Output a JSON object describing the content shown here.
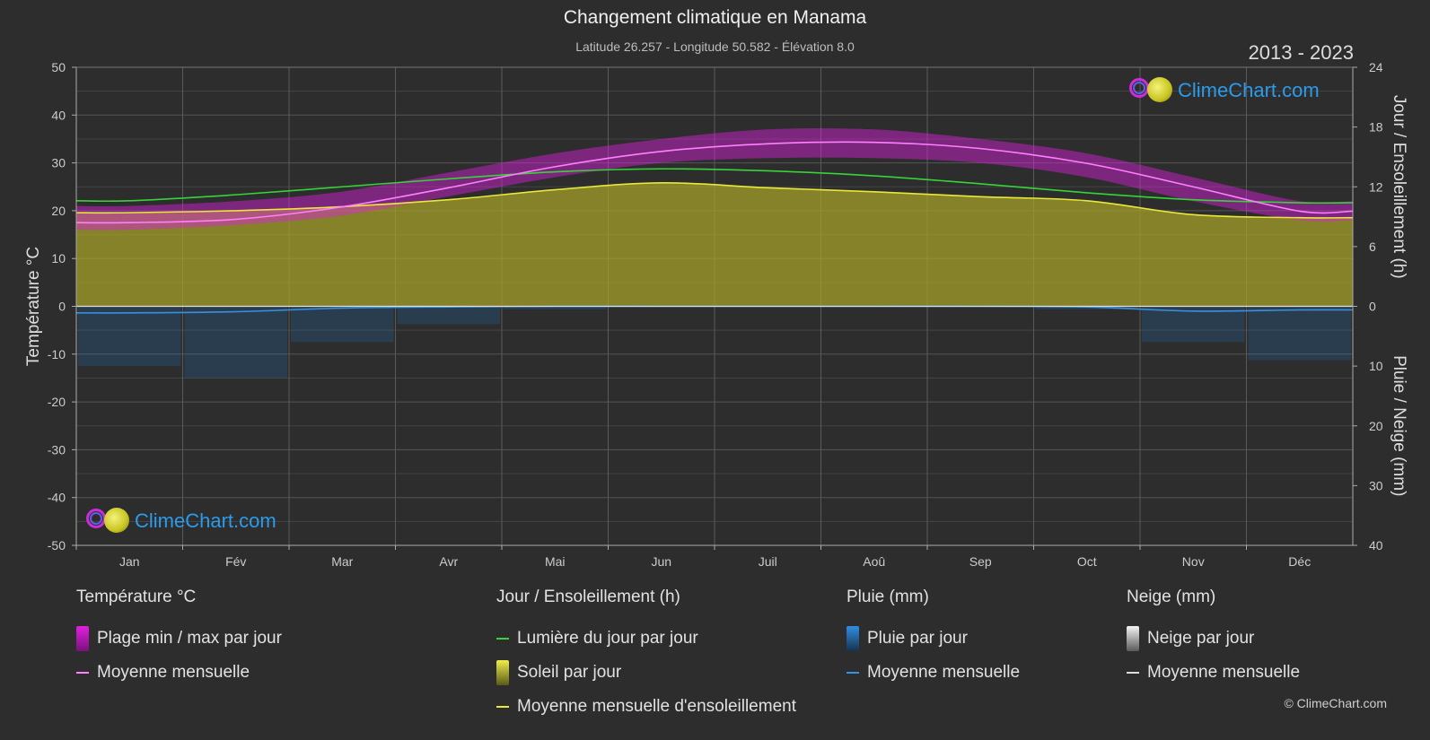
{
  "title": "Changement climatique en Manama",
  "subtitle": "Latitude 26.257 - Longitude 50.582 - Élévation 8.0",
  "period": "2013 - 2023",
  "brand": "ClimeChart.com",
  "copyright": "© ClimeChart.com",
  "colors": {
    "background": "#2d2d2d",
    "temp_range": "#e020e0",
    "temp_avg": "#ff80ff",
    "daylight": "#36d436",
    "sunshine_fill": "#a9a42a",
    "sunshine_avg": "#e8e83a",
    "rain": "#1e78c8",
    "rain_avg": "#3592e2",
    "snow": "#dddddd",
    "brand": "#2b9bea"
  },
  "chart_data": {
    "type": "line",
    "title": "Changement climatique en Manama",
    "categories": [
      "Jan",
      "Fév",
      "Mar",
      "Avr",
      "Mai",
      "Jun",
      "Juil",
      "Aoû",
      "Sep",
      "Oct",
      "Nov",
      "Déc"
    ],
    "y_left": {
      "label": "Température °C",
      "range": [
        -50,
        50
      ],
      "ticks": [
        "50",
        "40",
        "30",
        "20",
        "10",
        "0",
        "-10",
        "-20",
        "-30",
        "-40",
        "-50"
      ]
    },
    "y_right_top": {
      "label": "Jour / Ensoleillement (h)",
      "range": [
        0,
        24
      ],
      "ticks": [
        "24",
        "18",
        "12",
        "6",
        "0"
      ]
    },
    "y_right_bottom": {
      "label": "Pluie / Neige (mm)",
      "range": [
        0,
        40
      ],
      "ticks": [
        "10",
        "20",
        "30",
        "40"
      ]
    },
    "grid": true,
    "series": [
      {
        "name": "Plage min / max par jour",
        "kind": "band",
        "axis": "temperature",
        "min": [
          16,
          17,
          19,
          23,
          27,
          30,
          31,
          31,
          30,
          27,
          22,
          18
        ],
        "max": [
          21,
          22,
          24,
          28,
          32,
          35,
          37,
          37,
          35,
          32,
          27,
          22
        ]
      },
      {
        "name": "Moyenne mensuelle",
        "kind": "line",
        "axis": "temperature",
        "values": [
          17.5,
          18.2,
          20.8,
          24.8,
          29.2,
          32.4,
          34.0,
          34.3,
          33.0,
          29.9,
          25.0,
          19.9
        ]
      },
      {
        "name": "Lumière du jour par jour",
        "kind": "line",
        "axis": "hours",
        "values": [
          10.6,
          11.2,
          12.0,
          12.8,
          13.5,
          13.8,
          13.6,
          13.1,
          12.3,
          11.4,
          10.7,
          10.4
        ]
      },
      {
        "name": "Soleil par jour",
        "kind": "area",
        "axis": "hours",
        "values": [
          9.4,
          9.6,
          10.0,
          10.7,
          11.7,
          12.4,
          11.9,
          11.5,
          11.0,
          10.6,
          9.2,
          8.9
        ]
      },
      {
        "name": "Moyenne mensuelle d'ensoleillement",
        "kind": "line",
        "axis": "hours",
        "values": [
          9.4,
          9.6,
          10.0,
          10.7,
          11.7,
          12.4,
          11.9,
          11.5,
          11.0,
          10.6,
          9.2,
          8.9
        ]
      },
      {
        "name": "Pluie par jour",
        "kind": "bars",
        "axis": "precip",
        "values": [
          10,
          12,
          6,
          3,
          0.5,
          0,
          0,
          0,
          0,
          0.5,
          6,
          9
        ]
      },
      {
        "name": "Moyenne mensuelle",
        "kind": "line",
        "axis": "precip",
        "values": [
          1.1,
          0.9,
          0.3,
          0.1,
          0.0,
          0.0,
          0.0,
          0.0,
          0.0,
          0.1,
          0.8,
          0.6
        ]
      },
      {
        "name": "Neige par jour",
        "kind": "bars",
        "axis": "precip",
        "values": [
          0,
          0,
          0,
          0,
          0,
          0,
          0,
          0,
          0,
          0,
          0,
          0
        ]
      },
      {
        "name": "Moyenne mensuelle",
        "kind": "line",
        "axis": "precip",
        "values": [
          0,
          0,
          0,
          0,
          0,
          0,
          0,
          0,
          0,
          0,
          0,
          0
        ]
      }
    ]
  },
  "legend": {
    "temperature": {
      "heading": "Température °C",
      "items": [
        "Plage min / max par jour",
        "Moyenne mensuelle"
      ]
    },
    "sun": {
      "heading": "Jour / Ensoleillement (h)",
      "items": [
        "Lumière du jour par jour",
        "Soleil par jour",
        "Moyenne mensuelle d'ensoleillement"
      ]
    },
    "rain": {
      "heading": "Pluie (mm)",
      "items": [
        "Pluie par jour",
        "Moyenne mensuelle"
      ]
    },
    "snow": {
      "heading": "Neige (mm)",
      "items": [
        "Neige par jour",
        "Moyenne mensuelle"
      ]
    }
  }
}
